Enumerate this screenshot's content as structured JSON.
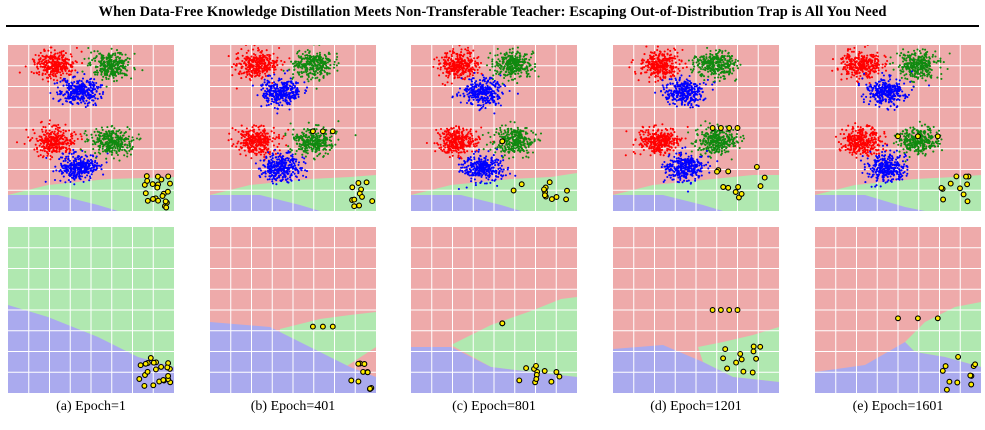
{
  "paper": {
    "running_title": "When Data-Free Knowledge Distillation Meets Non-Transferable Teacher: Escaping Out-of-Distribution Trap is All You Need"
  },
  "colors": {
    "region_red": "#eeaaaa",
    "region_green": "#b0e8b0",
    "region_blue": "#aaaaee",
    "cluster_red": "#ff0000",
    "cluster_green": "#108a10",
    "cluster_blue": "#0000ff",
    "synthetic_fill": "#ffee00",
    "synthetic_edge": "#000000",
    "grid": "#ffffff"
  },
  "figure": {
    "panels": [
      {
        "id": "a",
        "caption": "(a) Epoch=1",
        "epoch": 1
      },
      {
        "id": "b",
        "caption": "(b) Epoch=401",
        "epoch": 401
      },
      {
        "id": "c",
        "caption": "(c) Epoch=801",
        "epoch": 801
      },
      {
        "id": "d",
        "caption": "(d) Epoch=1201",
        "epoch": 1201
      },
      {
        "id": "e",
        "caption": "(e) Epoch=1601",
        "epoch": 1601
      }
    ],
    "rows": [
      "top",
      "bottom"
    ]
  }
}
